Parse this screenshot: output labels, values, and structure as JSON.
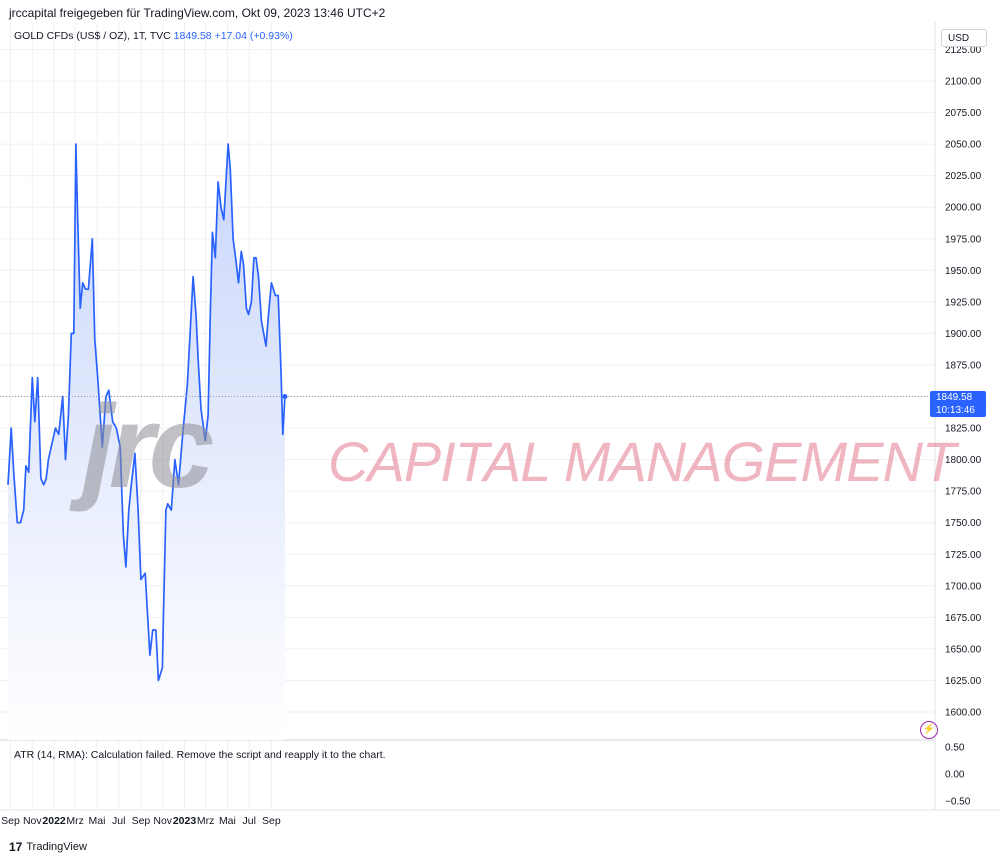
{
  "header": {
    "published": "jrccapital freigegeben für TradingView.com, Okt 09, 2023 13:46 UTC+2"
  },
  "legend": {
    "symbol": "GOLD CFDs (US$ / OZ), 1T, TVC",
    "last": "1849.58",
    "change": "+17.04 (+0.93%)"
  },
  "currency_label": "USD",
  "price_tag": {
    "value": "1849.58",
    "countdown": "10:13:46"
  },
  "indicator": {
    "message": "ATR (14, RMA): Calculation failed. Remove the script and reapply it to the chart.",
    "ticks": [
      "0.50",
      "0.00",
      "−0.50"
    ]
  },
  "watermark": {
    "logo_text": "jrc",
    "tagline": "CAPITAL MANAGEMENT"
  },
  "footer": {
    "logo": "17",
    "brand": "TradingView"
  },
  "colors": {
    "line": "#2962ff",
    "fill_top": "#c9d6fb",
    "fill_bottom": "#ffffff",
    "grid": "#eef0f4",
    "price_tag": "#2962ff"
  },
  "icons": {
    "alert": "lightning-alert-icon"
  },
  "chart_data": {
    "type": "area",
    "title": "GOLD CFDs (US$ / OZ), 1T, TVC",
    "xlabel": "",
    "ylabel": "",
    "currency": "USD",
    "ylim": [
      1575,
      2130
    ],
    "y_ticks": [
      "2125.00",
      "2100.00",
      "2075.00",
      "2050.00",
      "2025.00",
      "2000.00",
      "1975.00",
      "1950.00",
      "1925.00",
      "1900.00",
      "1875.00",
      "1850.00",
      "1825.00",
      "1800.00",
      "1775.00",
      "1750.00",
      "1725.00",
      "1700.00",
      "1675.00",
      "1650.00",
      "1625.00",
      "1600.00"
    ],
    "x_ticks": [
      "Sep",
      "Nov",
      "2022",
      "Mrz",
      "Mai",
      "Jul",
      "Sep",
      "Nov",
      "2023",
      "Mrz",
      "Mai",
      "Jul",
      "Sep"
    ],
    "x_tick_dates": [
      "2021-09-01",
      "2021-11-01",
      "2022-01-01",
      "2022-03-01",
      "2022-05-01",
      "2022-07-01",
      "2022-09-01",
      "2022-11-01",
      "2023-01-01",
      "2023-03-01",
      "2023-05-01",
      "2023-07-01",
      "2023-09-01"
    ],
    "x": [
      "2021-08-25",
      "2021-09-03",
      "2021-09-10",
      "2021-09-20",
      "2021-09-29",
      "2021-10-08",
      "2021-10-14",
      "2021-10-22",
      "2021-11-01",
      "2021-11-08",
      "2021-11-16",
      "2021-11-25",
      "2021-12-03",
      "2021-12-10",
      "2021-12-16",
      "2021-12-24",
      "2022-01-05",
      "2022-01-14",
      "2022-01-25",
      "2022-02-02",
      "2022-02-10",
      "2022-02-18",
      "2022-02-25",
      "2022-03-03",
      "2022-03-08",
      "2022-03-15",
      "2022-03-22",
      "2022-03-30",
      "2022-04-07",
      "2022-04-18",
      "2022-04-25",
      "2022-05-03",
      "2022-05-10",
      "2022-05-16",
      "2022-05-26",
      "2022-06-03",
      "2022-06-14",
      "2022-06-24",
      "2022-07-05",
      "2022-07-14",
      "2022-07-21",
      "2022-07-29",
      "2022-08-05",
      "2022-08-15",
      "2022-08-24",
      "2022-09-01",
      "2022-09-13",
      "2022-09-26",
      "2022-10-04",
      "2022-10-13",
      "2022-10-20",
      "2022-10-31",
      "2022-11-03",
      "2022-11-10",
      "2022-11-15",
      "2022-11-25",
      "2022-12-05",
      "2022-12-15",
      "2022-12-27",
      "2023-01-09",
      "2023-01-25",
      "2023-02-02",
      "2023-02-08",
      "2023-02-16",
      "2023-02-28",
      "2023-03-08",
      "2023-03-14",
      "2023-03-20",
      "2023-03-28",
      "2023-04-05",
      "2023-04-13",
      "2023-04-21",
      "2023-05-03",
      "2023-05-09",
      "2023-05-17",
      "2023-05-24",
      "2023-06-01",
      "2023-06-09",
      "2023-06-15",
      "2023-06-23",
      "2023-06-29",
      "2023-07-07",
      "2023-07-14",
      "2023-07-20",
      "2023-07-27",
      "2023-08-04",
      "2023-08-17",
      "2023-08-24",
      "2023-09-01",
      "2023-09-12",
      "2023-09-20",
      "2023-09-28",
      "2023-10-03",
      "2023-10-09"
    ],
    "series": [
      {
        "values": [
          1780,
          1825,
          1790,
          1750,
          1750,
          1760,
          1795,
          1790,
          1865,
          1830,
          1865,
          1785,
          1780,
          1785,
          1800,
          1810,
          1825,
          1820,
          1850,
          1800,
          1835,
          1900,
          1900,
          2050,
          1990,
          1920,
          1940,
          1935,
          1935,
          1975,
          1895,
          1865,
          1835,
          1810,
          1850,
          1855,
          1830,
          1825,
          1810,
          1740,
          1715,
          1760,
          1780,
          1805,
          1760,
          1705,
          1710,
          1645,
          1665,
          1665,
          1625,
          1635,
          1675,
          1760,
          1765,
          1760,
          1800,
          1780,
          1820,
          1860,
          1945,
          1915,
          1880,
          1840,
          1815,
          1835,
          1915,
          1980,
          1960,
          2020,
          2000,
          1990,
          2050,
          2030,
          1975,
          1960,
          1940,
          1965,
          1955,
          1920,
          1915,
          1925,
          1960,
          1960,
          1945,
          1910,
          1890,
          1915,
          1940,
          1930,
          1930,
          1870,
          1820,
          1850
        ]
      }
    ],
    "indicator_ylim": [
      -0.5,
      0.5
    ],
    "legend_position": "top-left",
    "grid": true
  }
}
